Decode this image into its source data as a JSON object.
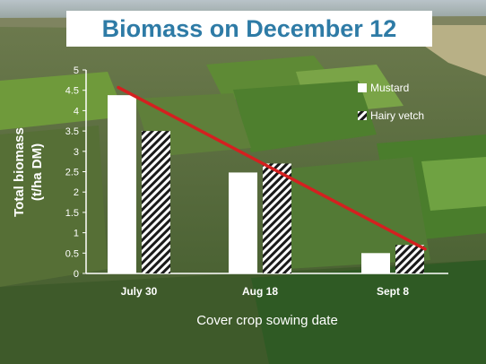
{
  "page": {
    "title": "Biomass on December 12"
  },
  "chart_data": {
    "type": "bar",
    "title": "Biomass on December 12",
    "xlabel": "Cover crop sowing date",
    "ylabel_line1": "Total biomass",
    "ylabel_line2": "(t/ha DM)",
    "categories": [
      "July 30",
      "Aug 18",
      "Sept 8"
    ],
    "ylim": [
      0,
      5
    ],
    "yticks": [
      "0",
      "0.5",
      "1",
      "1.5",
      "2",
      "2.5",
      "3",
      "3.5",
      "4",
      "4.5",
      "5"
    ],
    "series": [
      {
        "name": "Mustard",
        "values": [
          4.38,
          2.48,
          0.5
        ],
        "pattern": "solid-white"
      },
      {
        "name": "Hairy vetch",
        "values": [
          3.5,
          2.7,
          0.7
        ],
        "pattern": "hatched"
      }
    ],
    "trendline": {
      "color": "#d42020",
      "start_y": 4.57,
      "end_y": 0.6
    },
    "legend_position": "top-right",
    "grid": false
  }
}
